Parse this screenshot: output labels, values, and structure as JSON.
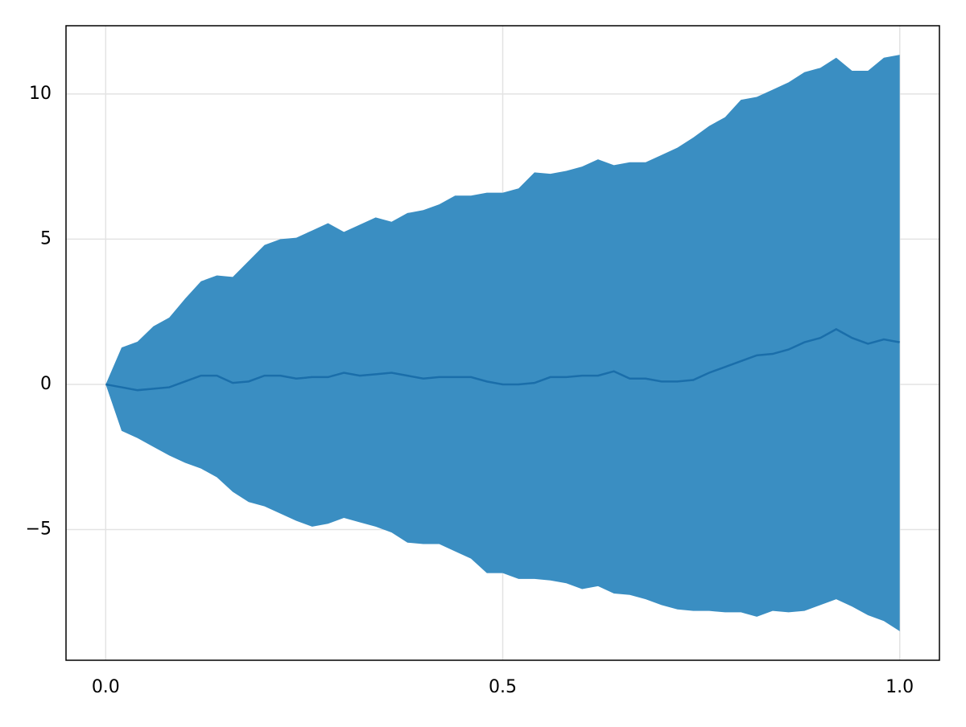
{
  "chart_data": {
    "type": "band",
    "x": [
      0,
      0.02,
      0.04,
      0.06,
      0.08,
      0.1,
      0.12,
      0.14,
      0.16,
      0.18,
      0.2,
      0.22,
      0.24,
      0.26,
      0.28,
      0.3,
      0.32,
      0.34,
      0.36,
      0.38,
      0.4,
      0.42,
      0.44,
      0.46,
      0.48,
      0.5,
      0.52,
      0.54,
      0.56,
      0.58,
      0.6,
      0.62,
      0.64,
      0.66,
      0.68,
      0.7,
      0.72,
      0.74,
      0.76,
      0.78,
      0.8,
      0.82,
      0.84,
      0.86,
      0.88,
      0.9,
      0.92,
      0.94,
      0.96,
      0.98,
      1
    ],
    "upper": [
      0,
      1.27,
      1.47,
      2.0,
      2.3,
      2.95,
      3.55,
      3.75,
      3.7,
      4.25,
      4.8,
      5.0,
      5.05,
      5.3,
      5.55,
      5.25,
      5.5,
      5.75,
      5.6,
      5.9,
      6.0,
      6.2,
      6.5,
      6.5,
      6.6,
      6.6,
      6.75,
      7.3,
      7.25,
      7.35,
      7.5,
      7.75,
      7.55,
      7.65,
      7.65,
      7.9,
      8.15,
      8.5,
      8.9,
      9.2,
      9.8,
      9.9,
      10.15,
      10.4,
      10.75,
      10.9,
      11.25,
      10.8,
      10.8,
      11.25,
      11.35
    ],
    "lower": [
      0,
      -1.6,
      -1.85,
      -2.15,
      -2.45,
      -2.7,
      -2.9,
      -3.2,
      -3.7,
      -4.05,
      -4.2,
      -4.45,
      -4.7,
      -4.9,
      -4.8,
      -4.6,
      -4.75,
      -4.9,
      -5.1,
      -5.45,
      -5.5,
      -5.5,
      -5.75,
      -6.0,
      -6.5,
      -6.5,
      -6.7,
      -6.7,
      -6.75,
      -6.85,
      -7.05,
      -6.95,
      -7.2,
      -7.25,
      -7.4,
      -7.6,
      -7.75,
      -7.8,
      -7.8,
      -7.85,
      -7.85,
      -8.0,
      -7.8,
      -7.85,
      -7.8,
      -7.6,
      -7.4,
      -7.65,
      -7.95,
      -8.15,
      -8.5
    ],
    "values": [
      0,
      -0.1,
      -0.2,
      -0.15,
      -0.1,
      0.1,
      0.3,
      0.3,
      0.05,
      0.1,
      0.3,
      0.3,
      0.2,
      0.25,
      0.25,
      0.4,
      0.3,
      0.35,
      0.4,
      0.3,
      0.2,
      0.25,
      0.25,
      0.25,
      0.1,
      0.0,
      0.0,
      0.05,
      0.25,
      0.25,
      0.3,
      0.3,
      0.45,
      0.2,
      0.2,
      0.1,
      0.1,
      0.15,
      0.4,
      0.6,
      0.8,
      1.0,
      1.05,
      1.2,
      1.45,
      1.6,
      1.9,
      1.6,
      1.4,
      1.55,
      1.45
    ],
    "band_color": "#3a8ec2",
    "line_color": "#1a6eaa",
    "xlim": [
      -0.05,
      1.05
    ],
    "ylim": [
      -9.5,
      12.35
    ],
    "xticks": [
      {
        "value": 0,
        "label": "0.0"
      },
      {
        "value": 0.5,
        "label": "0.5"
      },
      {
        "value": 1,
        "label": "1.0"
      }
    ],
    "yticks": [
      {
        "value": -5,
        "label": "−5"
      },
      0,
      5,
      10
    ],
    "grid": true
  }
}
